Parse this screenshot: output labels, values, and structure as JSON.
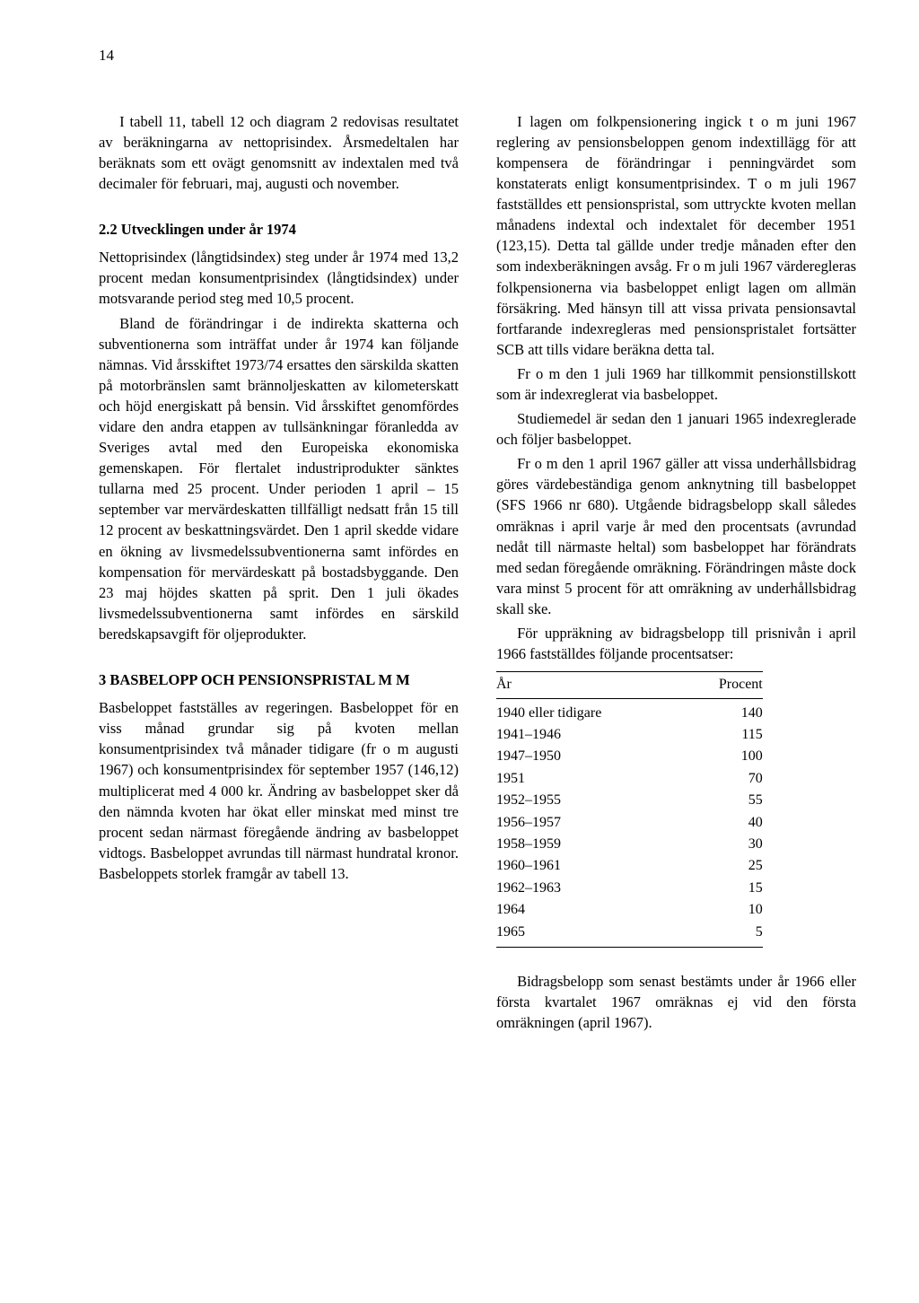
{
  "page_number": "14",
  "left_column": {
    "p1": "I tabell 11, tabell 12 och diagram 2 redovisas resultatet av beräkningarna av nettoprisindex. Årsmedeltalen har beräknats som ett ovägt genomsnitt av indextalen med två decimaler för februari, maj, augusti och november.",
    "sec22_title": "2.2   Utvecklingen under år 1974",
    "p2": "Nettoprisindex (långtidsindex) steg under år 1974 med 13,2 procent medan konsumentprisindex (långtidsindex) under motsvarande period steg med 10,5 procent.",
    "p3": "Bland de förändringar i de indirekta skatterna och subventionerna som inträffat under år 1974 kan följande nämnas. Vid årsskiftet 1973/74 ersattes den särskilda skatten på motorbränslen samt brännoljeskatten av kilometerskatt och höjd energiskatt på bensin. Vid årsskiftet genomfördes vidare den andra etappen av tullsänkningar föranledda av Sveriges avtal med den Europeiska ekonomiska gemenskapen. För flertalet industriprodukter sänktes tullarna med 25 procent. Under perioden 1 april – 15 september var mervärdeskatten tillfälligt nedsatt från 15 till 12 procent av beskattningsvärdet. Den 1 april skedde vidare en ökning av livsmedelssubventionerna samt infördes en kompensation för mervärdeskatt på bostadsbyggande. Den 23 maj höjdes skatten på sprit. Den 1 juli ökades livsmedelssubventionerna samt infördes en särskild beredskapsavgift för oljeprodukter.",
    "sec3_title": "3    BASBELOPP OCH PENSIONSPRISTAL M M",
    "p4": "Basbeloppet fastställes av regeringen. Basbeloppet för en viss månad grundar sig på kvoten mellan konsumentprisindex två månader tidigare (fr o m augusti 1967) och konsumentprisindex för september 1957 (146,12) multiplicerat med 4 000 kr. Ändring av basbeloppet sker då den nämnda kvoten har ökat eller minskat med minst tre procent sedan närmast föregående ändring av basbeloppet vidtogs. Basbeloppet avrundas till närmast hundratal kronor. Basbeloppets storlek framgår av tabell 13."
  },
  "right_column": {
    "p1": "I lagen om folkpensionering ingick t o m juni 1967 reglering av pensionsbeloppen genom indextillägg för att kompensera de förändringar i penningvärdet som konstaterats enligt konsumentprisindex. T o m juli 1967 fastställdes ett pensionspristal, som uttryckte kvoten mellan månadens indextal och indextalet för december 1951 (123,15). Detta tal gällde under tredje månaden efter den som indexberäkningen avsåg. Fr o m juli 1967 värderegleras folkpensionerna via basbeloppet enligt lagen om allmän försäkring. Med hänsyn till att vissa privata pensionsavtal fortfarande indexregleras med pensionspristalet fortsätter SCB att tills vidare beräkna detta tal.",
    "p2": "Fr o m den 1 juli 1969 har tillkommit pensionstillskott som är indexreglerat via basbeloppet.",
    "p3": "Studiemedel är sedan den 1 januari 1965 indexreglerade och följer basbeloppet.",
    "p4": "Fr o m den 1 april 1967 gäller att vissa underhållsbidrag göres värdebeständiga genom anknytning till basbeloppet (SFS 1966 nr 680). Utgående bidragsbelopp skall således omräknas i april varje år med den procentsats (avrundad nedåt till närmaste heltal) som basbeloppet har förändrats med sedan föregående omräkning. Förändringen måste dock vara minst 5 procent för att omräkning av underhållsbidrag skall ske.",
    "p5": "För uppräkning av bidragsbelopp till prisnivån i april 1966 fastställdes följande procentsatser:",
    "table": {
      "col1_header": "År",
      "col2_header": "Procent",
      "rows": [
        {
          "year": "1940 eller tidigare",
          "pct": "140"
        },
        {
          "year": "1941–1946",
          "pct": "115"
        },
        {
          "year": "1947–1950",
          "pct": "100"
        },
        {
          "year": "1951",
          "pct": "70"
        },
        {
          "year": "1952–1955",
          "pct": "55"
        },
        {
          "year": "1956–1957",
          "pct": "40"
        },
        {
          "year": "1958–1959",
          "pct": "30"
        },
        {
          "year": "1960–1961",
          "pct": "25"
        },
        {
          "year": "1962–1963",
          "pct": "15"
        },
        {
          "year": "1964",
          "pct": "10"
        },
        {
          "year": "1965",
          "pct": "5"
        }
      ]
    },
    "p6": "Bidragsbelopp som senast bestämts under år 1966 eller första kvartalet 1967 omräknas ej vid den första omräkningen (april 1967)."
  }
}
